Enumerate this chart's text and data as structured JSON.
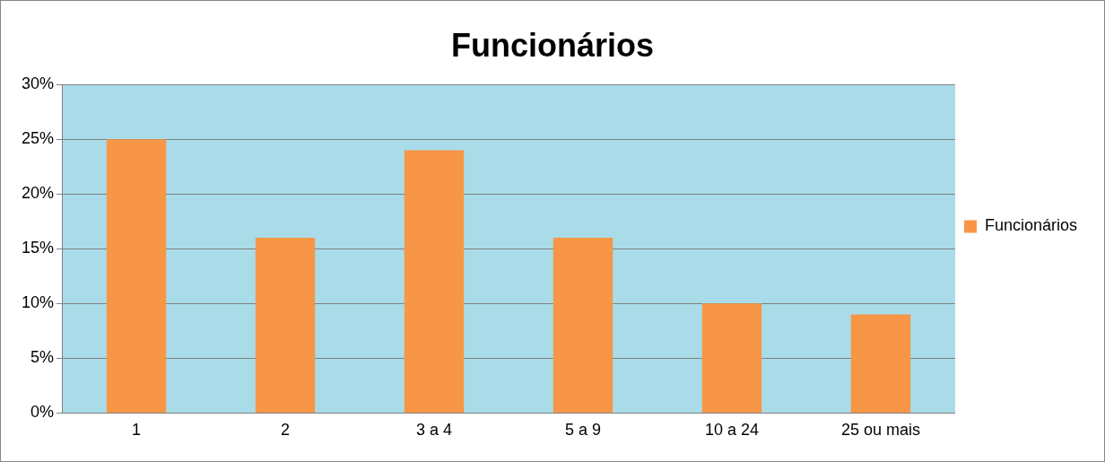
{
  "chart_data": {
    "type": "bar",
    "title": "Funcionários",
    "categories": [
      "1",
      "2",
      "3 a 4",
      "5 a 9",
      "10 a 24",
      "25 ou mais"
    ],
    "series": [
      {
        "name": "Funcionários",
        "color": "#f79646",
        "values": [
          25,
          16,
          24,
          16,
          10,
          9
        ]
      }
    ],
    "ylim": [
      0,
      30
    ],
    "yticks": [
      {
        "value": 0,
        "label": "0%"
      },
      {
        "value": 5,
        "label": "5%"
      },
      {
        "value": 10,
        "label": "10%"
      },
      {
        "value": 15,
        "label": "15%"
      },
      {
        "value": 20,
        "label": "20%"
      },
      {
        "value": 25,
        "label": "25%"
      },
      {
        "value": 30,
        "label": "30%"
      }
    ],
    "grid": "y",
    "legend": "right"
  }
}
